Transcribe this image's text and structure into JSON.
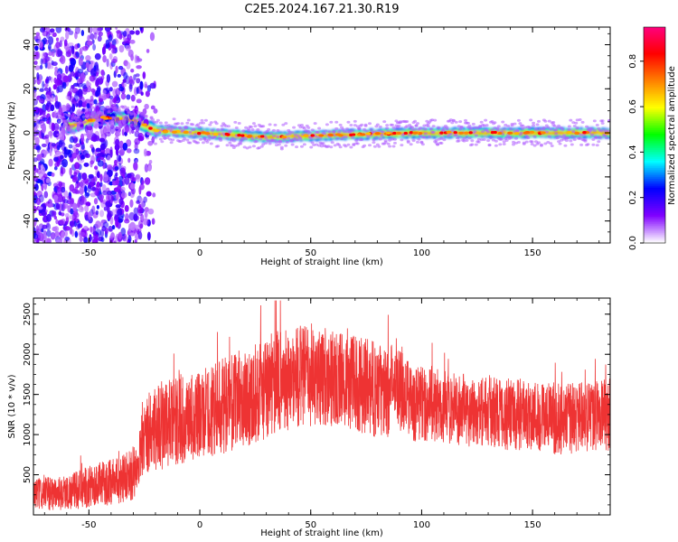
{
  "page_title": "C2E5.2024.167.21.30.R19",
  "chart_data": [
    {
      "type": "heatmap",
      "name": "spectrogram",
      "xlabel": "Height of straight line (km)",
      "ylabel": "Frequency (Hz)",
      "xlim": [
        -75,
        185
      ],
      "ylim": [
        -50,
        48
      ],
      "x_ticks": [
        -50,
        0,
        50,
        100,
        150
      ],
      "y_ticks": [
        -40,
        -20,
        0,
        20,
        40
      ],
      "colorbar": {
        "label": "Normalized spectral amplitude",
        "range": [
          0,
          0.95
        ],
        "ticks": [
          0.0,
          0.2,
          0.4,
          0.6,
          0.8
        ],
        "tick_labels": [
          "0.0",
          "0.2",
          "0.4",
          "0.6",
          "0.8"
        ],
        "colors": [
          "#ffffff",
          "#8000ff",
          "#0000ff",
          "#00ffff",
          "#00ff00",
          "#ffff00",
          "#ff8000",
          "#ff0000",
          "#ff0080"
        ]
      },
      "band_center_hz": [
        {
          "x": -58,
          "y": 3
        },
        {
          "x": -45,
          "y": 7
        },
        {
          "x": -30,
          "y": 6
        },
        {
          "x": -20,
          "y": 1
        },
        {
          "x": 0,
          "y": 0
        },
        {
          "x": 30,
          "y": -2
        },
        {
          "x": 60,
          "y": -1
        },
        {
          "x": 100,
          "y": 0
        },
        {
          "x": 150,
          "y": 0
        },
        {
          "x": 185,
          "y": 0
        }
      ]
    },
    {
      "type": "line",
      "name": "snr",
      "xlabel": "Height of straight line (km)",
      "ylabel": "SNR (10 * v/v)",
      "xlim": [
        -75,
        185
      ],
      "ylim": [
        0,
        2700
      ],
      "x_ticks": [
        -50,
        0,
        50,
        100,
        150
      ],
      "y_ticks": [
        500,
        1000,
        1500,
        2000,
        2500
      ],
      "color": "#ee3333",
      "envelope": {
        "x": [
          -75,
          -60,
          -45,
          -35,
          -28,
          -26,
          -20,
          -10,
          0,
          10,
          20,
          30,
          35,
          40,
          50,
          60,
          70,
          80,
          85,
          88,
          90,
          95,
          100,
          110,
          120,
          130,
          140,
          150,
          160,
          170,
          180,
          185
        ],
        "mean": [
          250,
          280,
          380,
          450,
          550,
          950,
          1100,
          1150,
          1250,
          1350,
          1450,
          1550,
          1650,
          1700,
          1750,
          1700,
          1650,
          1550,
          1500,
          1800,
          1600,
          1400,
          1400,
          1350,
          1300,
          1300,
          1250,
          1250,
          1200,
          1200,
          1250,
          1250
        ],
        "amplitude": [
          200,
          220,
          280,
          300,
          350,
          500,
          550,
          550,
          550,
          600,
          600,
          650,
          650,
          650,
          650,
          600,
          600,
          600,
          550,
          500,
          550,
          500,
          500,
          450,
          450,
          450,
          450,
          450,
          450,
          450,
          450,
          450
        ]
      }
    }
  ]
}
